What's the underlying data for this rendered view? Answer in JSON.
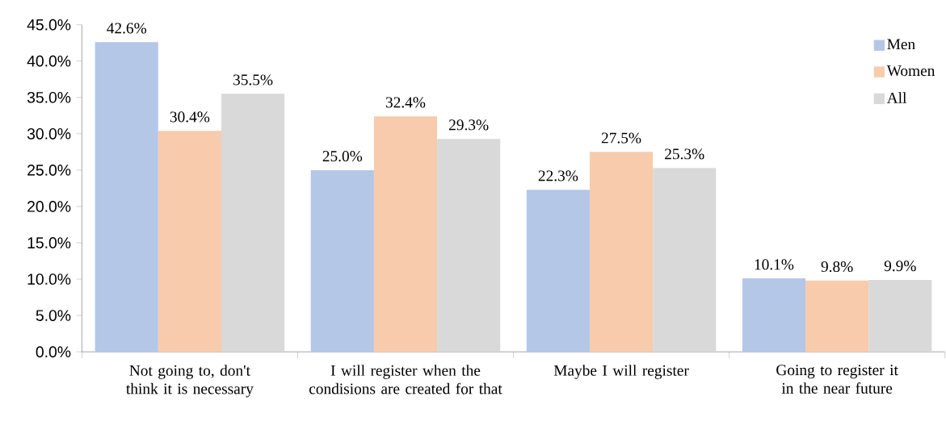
{
  "chart_data": {
    "type": "bar",
    "categories": [
      "Not going to, don't think it is necessary",
      "I will register when the condisions are created for that",
      "Maybe I will register",
      "Going to register it in the near future"
    ],
    "series": [
      {
        "name": "Men",
        "color": "#b4c7e7",
        "values": [
          42.6,
          25.0,
          22.3,
          10.1
        ],
        "value_labels": [
          "42.6%",
          "25.0%",
          "22.3%",
          "10.1%"
        ]
      },
      {
        "name": "Women",
        "color": "#f8cbad",
        "values": [
          30.4,
          32.4,
          27.5,
          9.8
        ],
        "value_labels": [
          "30.4%",
          "32.4%",
          "27.5%",
          "9.8%"
        ]
      },
      {
        "name": "All",
        "color": "#d9d9d9",
        "values": [
          35.5,
          29.3,
          25.3,
          9.9
        ],
        "value_labels": [
          "35.5%",
          "29.3%",
          "25.3%",
          "9.9%"
        ]
      }
    ],
    "ylim": [
      0,
      45
    ],
    "yticks": [
      {
        "value": 0,
        "label": "0.0%"
      },
      {
        "value": 5,
        "label": "5.0%"
      },
      {
        "value": 10,
        "label": "10.0%"
      },
      {
        "value": 15,
        "label": "15.0%"
      },
      {
        "value": 20,
        "label": "20.0%"
      },
      {
        "value": 25,
        "label": "25.0%"
      },
      {
        "value": 30,
        "label": "30.0%"
      },
      {
        "value": 35,
        "label": "35.0%"
      },
      {
        "value": 40,
        "label": "40.0%"
      },
      {
        "value": 45,
        "label": "45.0%"
      }
    ],
    "legend": "top right",
    "grid": false
  }
}
